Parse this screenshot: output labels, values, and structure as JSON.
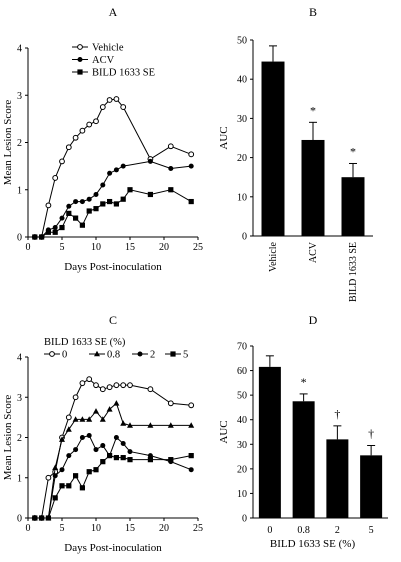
{
  "chart_data": [
    {
      "panel": "A",
      "type": "line",
      "xlabel": "Days Post-inoculation",
      "ylabel": "Mean Lesion Score",
      "xlim": [
        0,
        25
      ],
      "ylim": [
        0,
        4
      ],
      "xticks": [
        0,
        5,
        10,
        15,
        20,
        25
      ],
      "yticks": [
        0,
        1,
        2,
        3,
        4
      ],
      "legend_position": "top-left",
      "series": [
        {
          "name": "Vehicle",
          "marker": "open-circle",
          "x": [
            1,
            2,
            3,
            4,
            5,
            6,
            7,
            8,
            9,
            10,
            11,
            12,
            13,
            14,
            18,
            21,
            24
          ],
          "y": [
            0,
            0,
            0.67,
            1.25,
            1.6,
            1.9,
            2.1,
            2.25,
            2.38,
            2.45,
            2.75,
            2.9,
            2.92,
            2.75,
            1.65,
            1.92,
            1.75
          ]
        },
        {
          "name": "ACV",
          "marker": "filled-circle",
          "x": [
            1,
            2,
            3,
            4,
            5,
            6,
            7,
            8,
            9,
            10,
            11,
            12,
            13,
            14,
            18,
            21,
            24
          ],
          "y": [
            0,
            0,
            0.15,
            0.2,
            0.4,
            0.65,
            0.75,
            0.75,
            0.8,
            0.9,
            1.1,
            1.35,
            1.42,
            1.5,
            1.6,
            1.45,
            1.5
          ]
        },
        {
          "name": "BILD 1633 SE",
          "marker": "filled-square",
          "x": [
            1,
            2,
            3,
            4,
            5,
            6,
            7,
            8,
            9,
            10,
            11,
            12,
            13,
            14,
            15,
            18,
            21,
            24
          ],
          "y": [
            0,
            0,
            0.1,
            0.1,
            0.2,
            0.5,
            0.4,
            0.25,
            0.55,
            0.6,
            0.7,
            0.75,
            0.7,
            0.8,
            1.0,
            0.9,
            1.0,
            0.75
          ]
        }
      ]
    },
    {
      "panel": "B",
      "type": "bar",
      "ylabel": "AUC",
      "ylim": [
        0,
        50
      ],
      "yticks": [
        0,
        10,
        20,
        30,
        40,
        50
      ],
      "categories": [
        "Vehicle",
        "ACV",
        "BILD 1633 SE"
      ],
      "values": [
        44.5,
        24.5,
        15
      ],
      "errors": [
        4,
        4.5,
        3.5
      ],
      "annotations": [
        "",
        "*",
        "*"
      ]
    },
    {
      "panel": "C",
      "type": "line",
      "xlabel": "Days Post-inoculation",
      "ylabel": "Mean Lesion Score",
      "legend_title": "BILD 1633 SE (%)",
      "xlim": [
        0,
        25
      ],
      "ylim": [
        0,
        4
      ],
      "xticks": [
        0,
        5,
        10,
        15,
        20,
        25
      ],
      "yticks": [
        0,
        1,
        2,
        3,
        4
      ],
      "legend_position": "top",
      "series": [
        {
          "name": "0",
          "marker": "open-circle",
          "x": [
            1,
            2,
            3,
            4,
            5,
            6,
            7,
            8,
            9,
            10,
            11,
            12,
            13,
            14,
            15,
            18,
            21,
            24
          ],
          "y": [
            0,
            0,
            1.0,
            1.15,
            2.0,
            2.5,
            3.0,
            3.35,
            3.45,
            3.3,
            3.2,
            3.25,
            3.3,
            3.3,
            3.3,
            3.2,
            2.85,
            2.8
          ]
        },
        {
          "name": "0.8",
          "marker": "filled-triangle",
          "x": [
            1,
            2,
            3,
            4,
            5,
            6,
            7,
            8,
            9,
            10,
            11,
            12,
            13,
            14,
            15,
            18,
            21,
            24
          ],
          "y": [
            0,
            0,
            0,
            1.25,
            1.95,
            2.2,
            2.45,
            2.45,
            2.45,
            2.65,
            2.45,
            2.7,
            2.85,
            2.35,
            2.3,
            2.3,
            2.3,
            2.3
          ]
        },
        {
          "name": "2",
          "marker": "filled-circle",
          "x": [
            1,
            2,
            3,
            4,
            5,
            6,
            7,
            8,
            9,
            10,
            11,
            12,
            13,
            14,
            15,
            18,
            21,
            24
          ],
          "y": [
            0,
            0,
            0,
            1.05,
            1.2,
            1.55,
            1.7,
            2.0,
            2.05,
            1.7,
            1.8,
            1.55,
            2.0,
            1.85,
            1.65,
            1.55,
            1.4,
            1.2
          ]
        },
        {
          "name": "5",
          "marker": "filled-square",
          "x": [
            1,
            2,
            3,
            4,
            5,
            6,
            7,
            8,
            9,
            10,
            11,
            12,
            13,
            14,
            15,
            18,
            21,
            24
          ],
          "y": [
            0,
            0,
            0,
            0.5,
            0.8,
            0.8,
            1.05,
            0.75,
            1.15,
            1.2,
            1.4,
            1.55,
            1.5,
            1.5,
            1.45,
            1.45,
            1.45,
            1.55
          ]
        }
      ]
    },
    {
      "panel": "D",
      "type": "bar",
      "xlabel": "BILD 1633 SE (%)",
      "ylabel": "AUC",
      "ylim": [
        0,
        70
      ],
      "yticks": [
        0,
        10,
        20,
        30,
        40,
        50,
        60,
        70
      ],
      "categories": [
        "0",
        "0.8",
        "2",
        "5"
      ],
      "values": [
        61.5,
        47.5,
        32,
        25.5
      ],
      "errors": [
        4.5,
        3,
        5.5,
        4
      ],
      "annotations": [
        "",
        "*",
        "†",
        "†"
      ]
    }
  ]
}
